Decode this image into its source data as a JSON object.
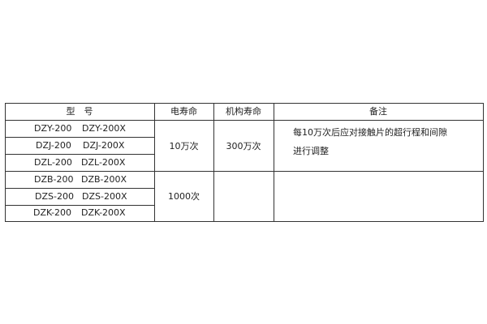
{
  "table": {
    "headers": [
      "型　号",
      "电寿命",
      "机构寿命",
      "备注"
    ],
    "rows": [
      [
        "DZY-200",
        "DZY-200X"
      ],
      [
        "DZJ-200",
        "DZJ-200X"
      ],
      [
        "DZL-200",
        "DZL-200X"
      ],
      [
        "DZB-200",
        "DZB-200X"
      ],
      [
        "DZS-200",
        "DZS-200X"
      ],
      [
        "DZK-200",
        "DZK-200X"
      ]
    ],
    "groups": [
      {
        "electrical_life": "10万次",
        "mechanical_life": "300万次",
        "remarks": [
          "每10万次后应对接触片的超行程和间隙",
          "进行调整"
        ]
      },
      {
        "electrical_life": "1000次",
        "mechanical_life": "",
        "remarks": []
      }
    ]
  }
}
